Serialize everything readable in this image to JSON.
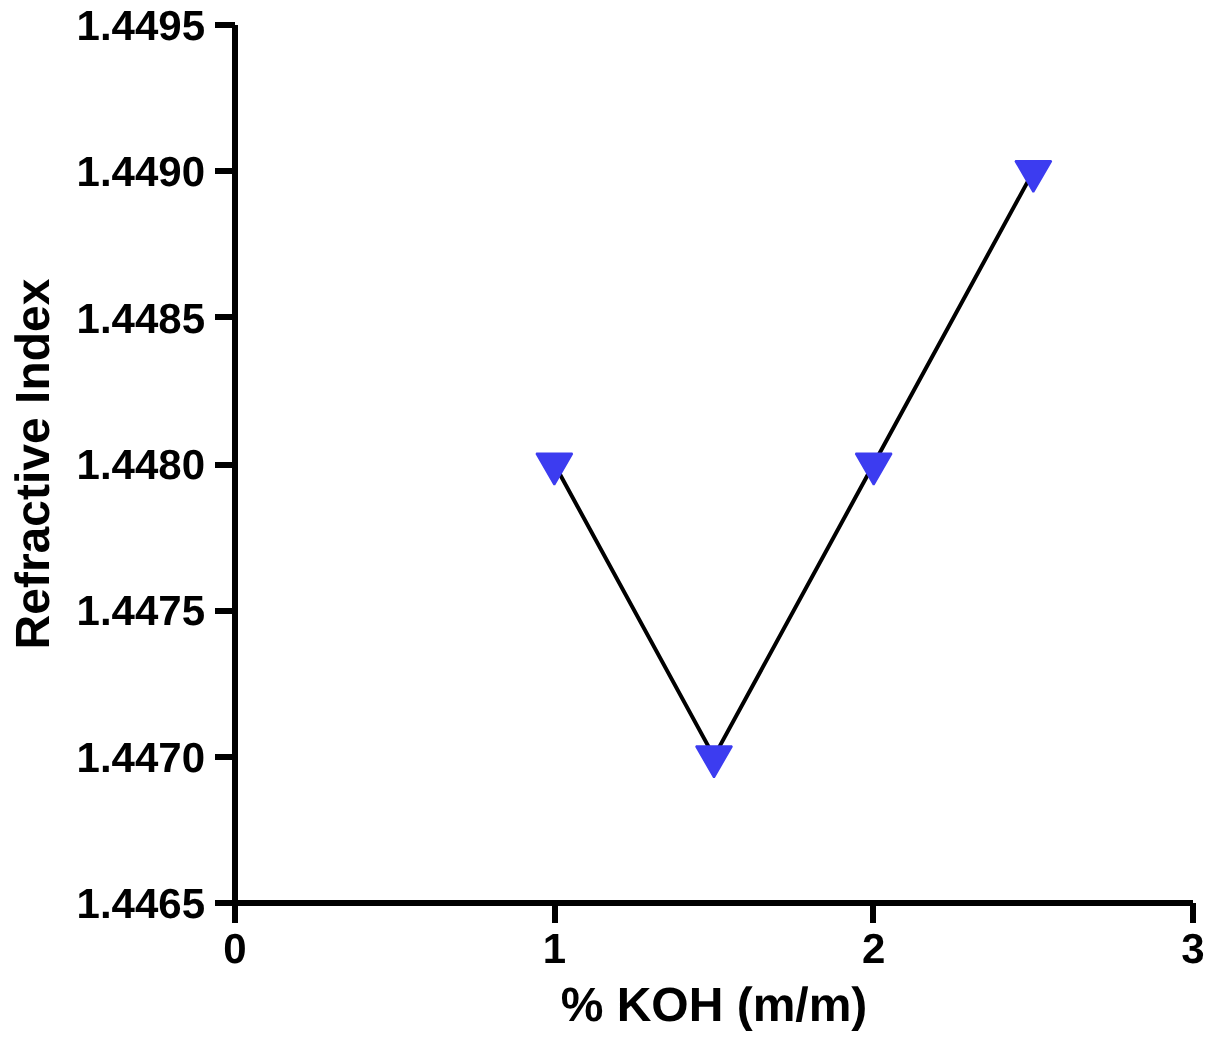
{
  "chart_data": {
    "type": "line",
    "xlabel": "% KOH (m/m)",
    "ylabel": "Refractive Index",
    "x": [
      1,
      1.5,
      2,
      2.5
    ],
    "series": [
      {
        "color": "#3c3cf0",
        "values": [
          1.448,
          1.447,
          1.448,
          1.449
        ]
      }
    ],
    "xlim": [
      0,
      3
    ],
    "xticks": [
      0,
      1,
      2,
      3
    ],
    "ylim": [
      1.4465,
      1.4495
    ],
    "yticks": [
      {
        "value": 1.4465,
        "label": "1.4465"
      },
      {
        "value": 1.447,
        "label": "1.4470"
      },
      {
        "value": 1.4475,
        "label": "1.4475"
      },
      {
        "value": 1.448,
        "label": "1.4480"
      },
      {
        "value": 1.4485,
        "label": "1.4485"
      },
      {
        "value": 1.449,
        "label": "1.4490"
      },
      {
        "value": 1.4495,
        "label": "1.4495"
      }
    ],
    "marker": "triangle",
    "grid": false
  }
}
